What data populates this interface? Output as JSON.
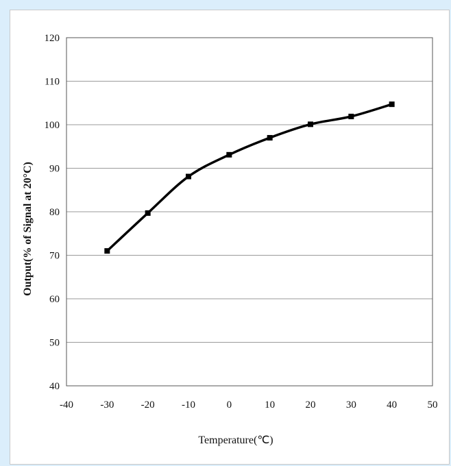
{
  "chart_data": {
    "type": "line",
    "title": "",
    "xlabel": "Temperature(℃)",
    "ylabel": "Output(% of Signal at 20°C)",
    "xlim": [
      -40,
      50
    ],
    "ylim": [
      40,
      120
    ],
    "xticks": [
      -40,
      -30,
      -20,
      -10,
      0,
      10,
      20,
      30,
      40,
      50
    ],
    "yticks": [
      40,
      50,
      60,
      70,
      80,
      90,
      100,
      110,
      120
    ],
    "grid": "horizontal",
    "legend": "none",
    "series": [
      {
        "x": [
          -30,
          -20,
          -10,
          0,
          10,
          20,
          30,
          40
        ],
        "y": [
          71,
          79.7,
          88.1,
          93.1,
          97,
          100.1,
          101.9,
          104.7
        ],
        "color": "#000000",
        "marker": "square"
      }
    ],
    "colors": {
      "page_background": "#dbeefb",
      "plot_background": "#ffffff",
      "gridline": "#9a9a9a",
      "axis": "#555555",
      "line": "#000000"
    }
  }
}
